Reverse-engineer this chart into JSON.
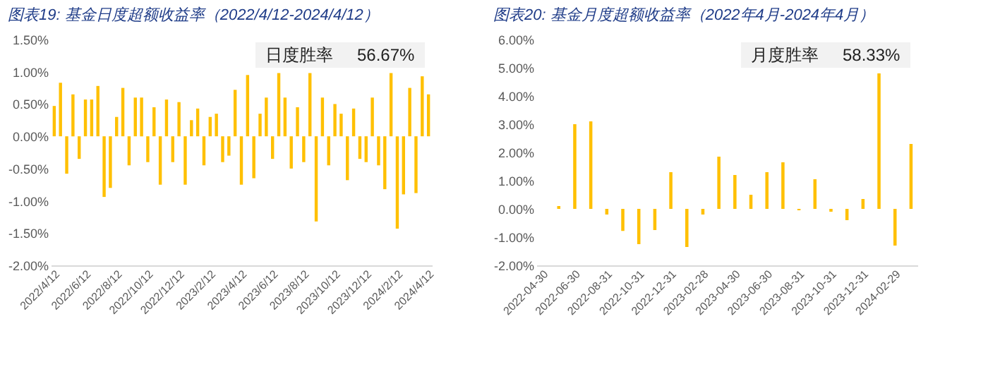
{
  "chart_data": [
    {
      "type": "bar",
      "title": "图表19:  基金日度超额收益率（2022/4/12-2024/4/12）",
      "color": "#ffc000",
      "grid": false,
      "annotations": [
        "日度胜率",
        "56.67%"
      ],
      "ylim": [
        -2,
        1.5
      ],
      "yticks": [
        {
          "value": -2,
          "label": "-2.00%"
        },
        {
          "value": -1.5,
          "label": "-1.50%"
        },
        {
          "value": -1,
          "label": "-1.00%"
        },
        {
          "value": -0.5,
          "label": "-0.50%"
        },
        {
          "value": 0,
          "label": "0.00%"
        },
        {
          "value": 0.5,
          "label": "0.50%"
        },
        {
          "value": 1,
          "label": "1.00%"
        },
        {
          "value": 1.5,
          "label": "1.50%"
        }
      ],
      "categories": [
        "2022/4/12",
        null,
        null,
        null,
        null,
        "2022/6/12",
        null,
        null,
        null,
        null,
        "2022/8/12",
        null,
        null,
        null,
        null,
        "2022/10/12",
        null,
        null,
        null,
        null,
        "2022/12/12",
        null,
        null,
        null,
        null,
        "2023/2/12",
        null,
        null,
        null,
        null,
        "2023/4/12",
        null,
        null,
        null,
        null,
        "2023/6/12",
        null,
        null,
        null,
        null,
        "2023/8/12",
        null,
        null,
        null,
        null,
        "2023/10/12",
        null,
        null,
        null,
        null,
        "2023/12/12",
        null,
        null,
        null,
        null,
        "2024/2/12",
        null,
        null,
        null,
        null,
        "2024/4/12"
      ],
      "values": [
        0.47,
        0.83,
        -0.58,
        0.65,
        -0.35,
        0.57,
        0.57,
        0.78,
        -0.94,
        -0.8,
        0.3,
        0.75,
        -0.45,
        0.6,
        0.6,
        -0.4,
        0.45,
        -0.75,
        0.57,
        -0.4,
        0.53,
        -0.75,
        0.25,
        0.43,
        -0.45,
        0.3,
        0.35,
        -0.4,
        -0.3,
        0.72,
        -0.75,
        0.95,
        -0.65,
        0.35,
        0.6,
        -0.35,
        0.98,
        0.6,
        -0.5,
        0.45,
        -0.4,
        0.98,
        -1.32,
        0.6,
        -0.45,
        0.5,
        0.35,
        -0.68,
        0.43,
        -0.35,
        -0.4,
        0.6,
        -0.45,
        -0.82,
        0.98,
        -1.43,
        -0.9,
        0.75,
        -0.88,
        0.93,
        0.65
      ]
    },
    {
      "type": "bar",
      "title": "图表20:  基金月度超额收益率（2022年4月-2024年4月）",
      "color": "#ffc000",
      "grid": false,
      "annotations": [
        "月度胜率",
        "58.33%"
      ],
      "ylim": [
        -2,
        6
      ],
      "yticks": [
        {
          "value": -2,
          "label": "-2.00%"
        },
        {
          "value": -1,
          "label": "-1.00%"
        },
        {
          "value": 0,
          "label": "0.00%"
        },
        {
          "value": 1,
          "label": "1.00%"
        },
        {
          "value": 2,
          "label": "2.00%"
        },
        {
          "value": 3,
          "label": "3.00%"
        },
        {
          "value": 4,
          "label": "4.00%"
        },
        {
          "value": 5,
          "label": "5.00%"
        },
        {
          "value": 6,
          "label": "6.00%"
        }
      ],
      "categories": [
        "2022-04-30",
        null,
        "2022-06-30",
        null,
        "2022-08-31",
        null,
        "2022-10-31",
        null,
        "2022-12-31",
        null,
        "2023-02-28",
        null,
        "2023-04-30",
        null,
        "2023-06-30",
        null,
        "2023-08-31",
        null,
        "2023-10-31",
        null,
        "2023-12-31",
        null,
        "2024-02-29",
        null
      ],
      "values": [
        0.0,
        0.1,
        3.0,
        3.1,
        -0.2,
        -0.78,
        -1.25,
        -0.75,
        1.3,
        -1.35,
        -0.2,
        1.85,
        1.2,
        0.5,
        1.3,
        1.65,
        -0.05,
        1.05,
        -0.1,
        -0.4,
        0.35,
        4.8,
        -1.3,
        2.3
      ]
    }
  ]
}
